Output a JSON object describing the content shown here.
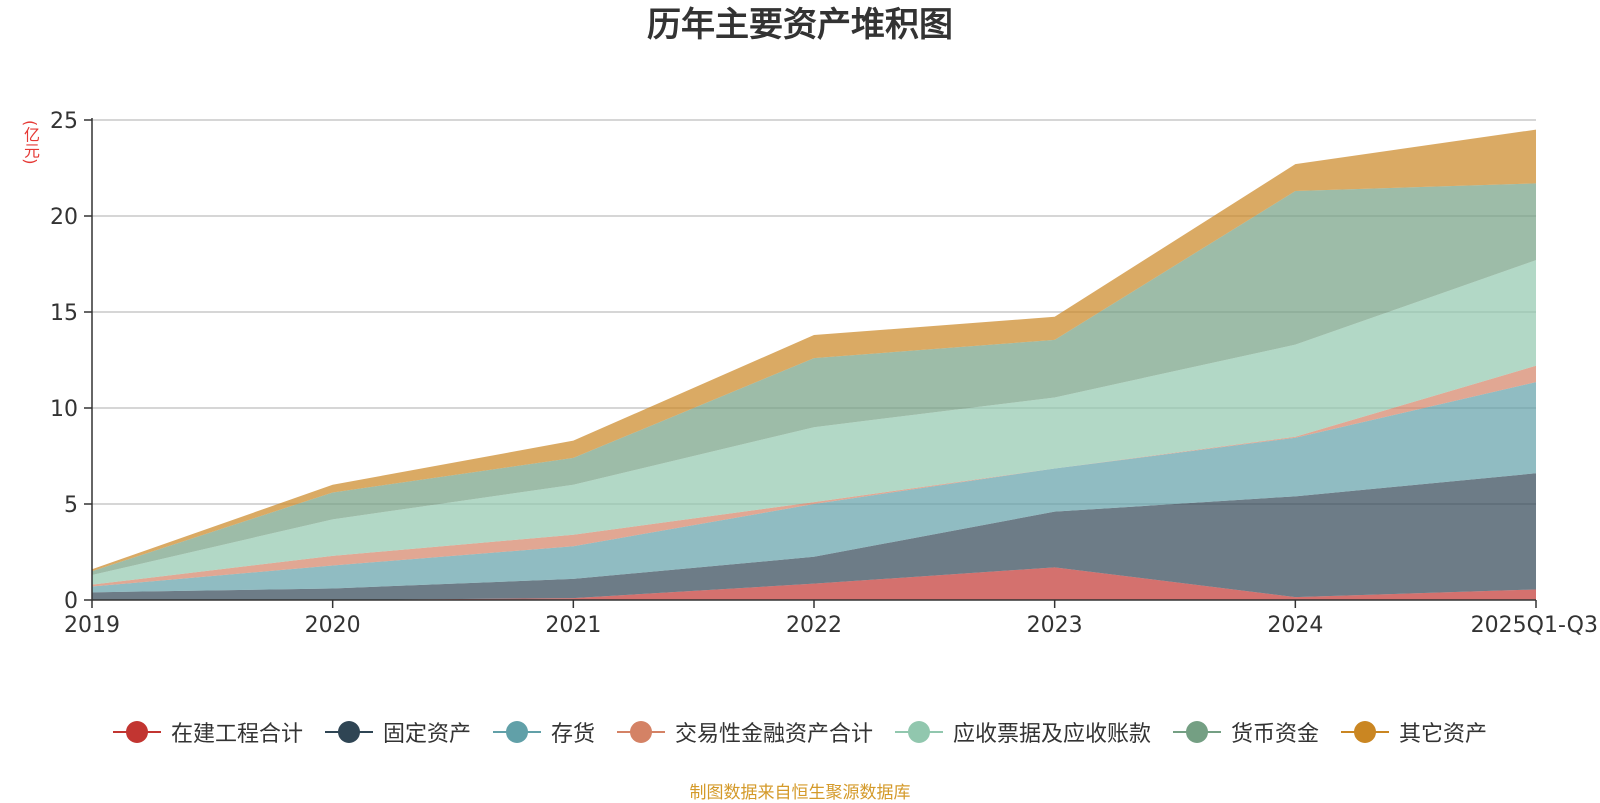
{
  "chart_data": {
    "type": "area",
    "stacked": true,
    "title": "历年主要资产堆积图",
    "ylabel": "(亿元)",
    "xlabel": "",
    "categories": [
      "2019",
      "2020",
      "2021",
      "2022",
      "2023",
      "2024",
      "2025Q1-Q3"
    ],
    "ylim": [
      0,
      25
    ],
    "yticks": [
      0,
      5,
      10,
      15,
      20,
      25
    ],
    "grid": true,
    "legend_position": "bottom",
    "series": [
      {
        "name": "在建工程合计",
        "color": "#c23531",
        "values": [
          0.0,
          0.0,
          0.1,
          0.85,
          1.7,
          0.15,
          0.55
        ]
      },
      {
        "name": "固定资产",
        "color": "#2f4554",
        "values": [
          0.4,
          0.6,
          1.0,
          1.4,
          2.9,
          5.25,
          6.05
        ]
      },
      {
        "name": "存货",
        "color": "#61a0a8",
        "values": [
          0.3,
          1.2,
          1.7,
          2.75,
          2.25,
          3.05,
          4.75
        ]
      },
      {
        "name": "交易性金融资产合计",
        "color": "#d48265",
        "values": [
          0.1,
          0.5,
          0.6,
          0.1,
          0.0,
          0.05,
          0.85
        ]
      },
      {
        "name": "应收票据及应收账款",
        "color": "#91c7ae",
        "values": [
          0.5,
          1.9,
          2.6,
          3.9,
          3.7,
          4.8,
          5.5
        ]
      },
      {
        "name": "货币资金",
        "color": "#749f83",
        "values": [
          0.2,
          1.4,
          1.4,
          3.6,
          3.0,
          8.0,
          4.0
        ]
      },
      {
        "name": "其它资产",
        "color": "#ca8622",
        "values": [
          0.1,
          0.4,
          0.9,
          1.2,
          1.2,
          1.4,
          2.8
        ]
      }
    ],
    "source_note": "制图数据来自恒生聚源数据库"
  }
}
